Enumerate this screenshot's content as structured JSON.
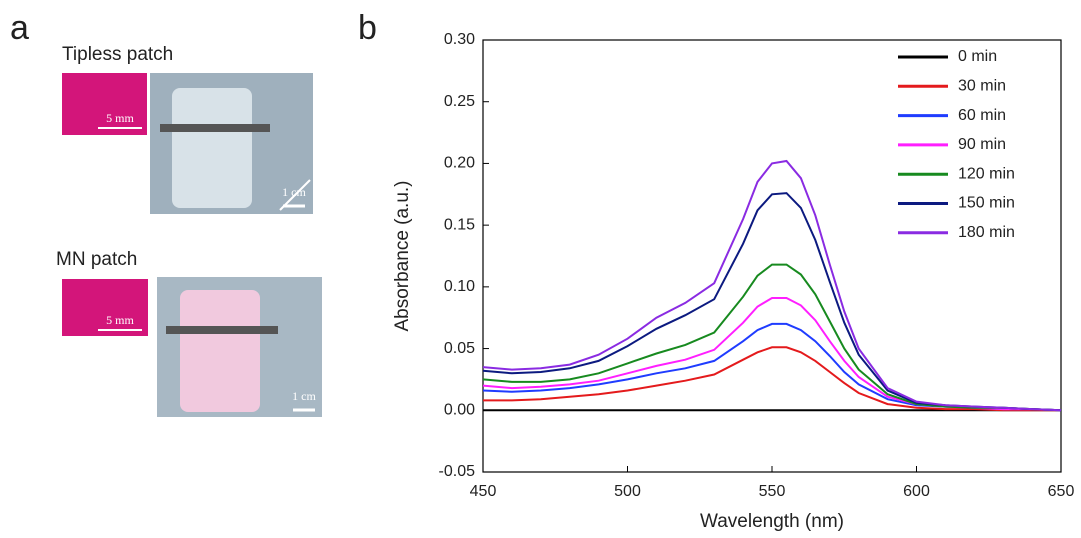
{
  "panel_a": {
    "label": "a",
    "tipless": {
      "title": "Tipless patch",
      "inset_scale": "5 mm",
      "photo_scale": "1 cm"
    },
    "mn": {
      "title": "MN patch",
      "inset_scale": "5 mm",
      "photo_scale": "1 cm"
    }
  },
  "chart_data": {
    "type": "line",
    "panel_label": "b",
    "x_label": "Wavelength (nm)",
    "y_label": "Absorbance (a.u.)",
    "xlim": [
      450,
      650
    ],
    "xticks": [
      450,
      500,
      550,
      600,
      650
    ],
    "ylim": [
      -0.05,
      0.3
    ],
    "yticks": [
      {
        "value": -0.05,
        "label": "-0.05"
      },
      {
        "value": 0,
        "label": "0.00"
      },
      0.05,
      {
        "value": 0.1,
        "label": "0.10"
      },
      0.15,
      {
        "value": 0.2,
        "label": "0.20"
      },
      0.25,
      {
        "value": 0.3,
        "label": "0.30"
      }
    ],
    "legend_position": "upper-right",
    "x": [
      450,
      460,
      470,
      480,
      490,
      500,
      510,
      520,
      530,
      540,
      545,
      550,
      555,
      560,
      565,
      570,
      575,
      580,
      590,
      600,
      610,
      620,
      630,
      640,
      650
    ],
    "series": [
      {
        "name": "0 min",
        "color": "#000000",
        "values": [
          0,
          0,
          0,
          0,
          0,
          0,
          0,
          0,
          0,
          0,
          0,
          0,
          0,
          0,
          0,
          0,
          0,
          0,
          0,
          0,
          0,
          0,
          0,
          0,
          0
        ]
      },
      {
        "name": "30 min",
        "color": "#e41a1c",
        "values": [
          0.008,
          0.008,
          0.009,
          0.011,
          0.013,
          0.016,
          0.02,
          0.024,
          0.029,
          0.041,
          0.047,
          0.051,
          0.051,
          0.047,
          0.04,
          0.031,
          0.022,
          0.014,
          0.005,
          0.002,
          0.001,
          0.001,
          0,
          0,
          0
        ]
      },
      {
        "name": "60 min",
        "color": "#1f3cff",
        "values": [
          0.016,
          0.015,
          0.016,
          0.018,
          0.021,
          0.025,
          0.03,
          0.034,
          0.04,
          0.056,
          0.065,
          0.07,
          0.07,
          0.065,
          0.056,
          0.044,
          0.031,
          0.021,
          0.009,
          0.004,
          0.003,
          0.002,
          0.001,
          0.001,
          0
        ]
      },
      {
        "name": "90 min",
        "color": "#ff1fff",
        "values": [
          0.02,
          0.018,
          0.019,
          0.021,
          0.024,
          0.03,
          0.036,
          0.041,
          0.049,
          0.071,
          0.084,
          0.091,
          0.091,
          0.085,
          0.073,
          0.056,
          0.04,
          0.027,
          0.011,
          0.005,
          0.003,
          0.002,
          0.001,
          0.001,
          0
        ]
      },
      {
        "name": "120 min",
        "color": "#178a1f",
        "values": [
          0.025,
          0.023,
          0.023,
          0.025,
          0.03,
          0.038,
          0.046,
          0.053,
          0.063,
          0.092,
          0.109,
          0.118,
          0.118,
          0.11,
          0.094,
          0.072,
          0.05,
          0.033,
          0.013,
          0.005,
          0.003,
          0.002,
          0.002,
          0.001,
          0
        ]
      },
      {
        "name": "150 min",
        "color": "#0c1a80",
        "values": [
          0.032,
          0.03,
          0.031,
          0.034,
          0.04,
          0.052,
          0.066,
          0.077,
          0.09,
          0.135,
          0.162,
          0.175,
          0.176,
          0.164,
          0.138,
          0.104,
          0.071,
          0.045,
          0.016,
          0.006,
          0.004,
          0.003,
          0.002,
          0.001,
          0
        ]
      },
      {
        "name": "180 min",
        "color": "#8a2be2",
        "values": [
          0.035,
          0.033,
          0.034,
          0.037,
          0.045,
          0.058,
          0.075,
          0.087,
          0.103,
          0.155,
          0.185,
          0.2,
          0.202,
          0.188,
          0.158,
          0.118,
          0.08,
          0.05,
          0.018,
          0.007,
          0.004,
          0.003,
          0.002,
          0.001,
          0
        ]
      }
    ]
  }
}
